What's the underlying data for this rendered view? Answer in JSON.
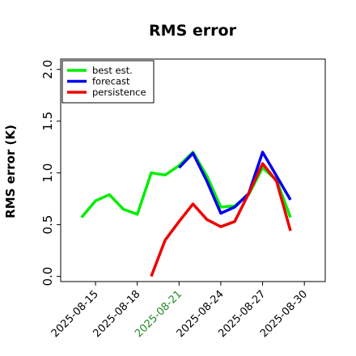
{
  "chart_data": {
    "type": "line",
    "title": "RMS error",
    "ylabel": "RMS error (K)",
    "xlabel": "",
    "ylim": [
      -0.05,
      2.1
    ],
    "y_ticks": [
      "0.0",
      "0.5",
      "1.0",
      "1.5",
      "2.0"
    ],
    "x_ticks": [
      {
        "date": "2025-08-15",
        "label": "2025-08-15",
        "color": "#000000"
      },
      {
        "date": "2025-08-18",
        "label": "2025-08-18",
        "color": "#000000"
      },
      {
        "date": "2025-08-21",
        "label": "2025-08-21",
        "color": "#228b22"
      },
      {
        "date": "2025-08-24",
        "label": "2025-08-24",
        "color": "#000000"
      },
      {
        "date": "2025-08-27",
        "label": "2025-08-27",
        "color": "#000000"
      },
      {
        "date": "2025-08-30",
        "label": "2025-08-30",
        "color": "#000000"
      }
    ],
    "xlim": [
      "2025-08-12T12:00",
      "2025-08-31T12:00"
    ],
    "legend_position": "top-left",
    "grid": false,
    "series": [
      {
        "name": "best est.",
        "color": "#00ee00",
        "points": [
          [
            "2025-08-14",
            0.57
          ],
          [
            "2025-08-15",
            0.73
          ],
          [
            "2025-08-16",
            0.79
          ],
          [
            "2025-08-17",
            0.65
          ],
          [
            "2025-08-18",
            0.6
          ],
          [
            "2025-08-19",
            1.0
          ],
          [
            "2025-08-20",
            0.98
          ],
          [
            "2025-08-21",
            1.07
          ],
          [
            "2025-08-22",
            1.2
          ],
          [
            "2025-08-23",
            0.97
          ],
          [
            "2025-08-24",
            0.67
          ],
          [
            "2025-08-25",
            0.68
          ],
          [
            "2025-08-26",
            0.79
          ],
          [
            "2025-08-27",
            1.05
          ],
          [
            "2025-08-28",
            0.93
          ],
          [
            "2025-08-29",
            0.57
          ]
        ]
      },
      {
        "name": "forecast",
        "color": "#0000ee",
        "points": [
          [
            "2025-08-21",
            1.05
          ],
          [
            "2025-08-22",
            1.19
          ],
          [
            "2025-08-23",
            0.92
          ],
          [
            "2025-08-24",
            0.61
          ],
          [
            "2025-08-25",
            0.67
          ],
          [
            "2025-08-26",
            0.8
          ],
          [
            "2025-08-27",
            1.2
          ],
          [
            "2025-08-28",
            0.97
          ],
          [
            "2025-08-29",
            0.74
          ]
        ]
      },
      {
        "name": "persistence",
        "color": "#ee0000",
        "points": [
          [
            "2025-08-19",
            0.0
          ],
          [
            "2025-08-20",
            0.35
          ],
          [
            "2025-08-21",
            0.53
          ],
          [
            "2025-08-22",
            0.7
          ],
          [
            "2025-08-23",
            0.55
          ],
          [
            "2025-08-24",
            0.48
          ],
          [
            "2025-08-25",
            0.53
          ],
          [
            "2025-08-26",
            0.8
          ],
          [
            "2025-08-27",
            1.09
          ],
          [
            "2025-08-28",
            0.92
          ],
          [
            "2025-08-29",
            0.44
          ]
        ]
      }
    ]
  }
}
